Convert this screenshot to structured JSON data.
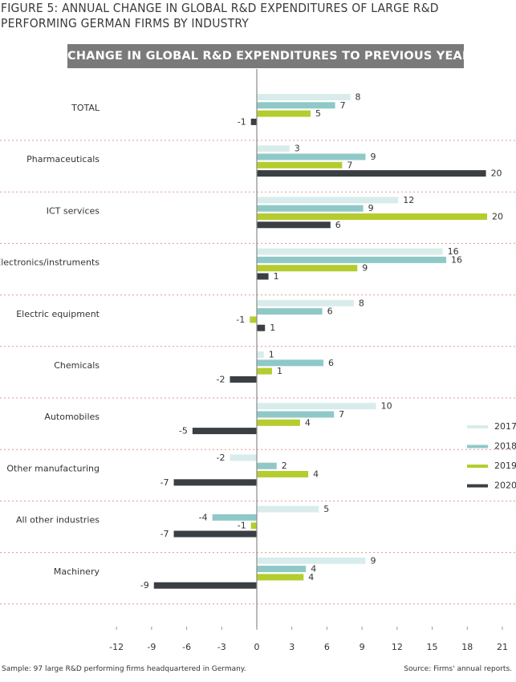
{
  "figure_title_line1": "FIGURE 5: ANNUAL CHANGE IN GLOBAL R&D EXPENDITURES OF LARGE R&D",
  "figure_title_line2": "PERFORMING GERMAN FIRMS BY INDUSTRY",
  "footer": {
    "sample": "Sample: 97 large R&D performing firms headquartered in Germany.",
    "source": "Source: Firms' annual reports."
  },
  "chart_data": {
    "type": "bar",
    "orientation": "horizontal",
    "title": "CHANGE IN GLOBAL R&D EXPENDITURES TO PREVIOUS YEAR (%)",
    "categories": [
      "TOTAL",
      "Pharmaceuticals",
      "ICT services",
      "Electronics/instruments",
      "Electric equipment",
      "Chemicals",
      "Automobiles",
      "Other manufacturing",
      "All other industries",
      "Machinery"
    ],
    "series": [
      {
        "name": "2017",
        "color": "#d9ecec",
        "values": [
          8,
          2.8,
          12.1,
          15.9,
          8.3,
          0.6,
          10.2,
          -2.3,
          5.3,
          9.3
        ],
        "labels": [
          "8",
          "3",
          "12",
          "16",
          "8",
          "1",
          "10",
          "-2",
          "5",
          "9"
        ]
      },
      {
        "name": "2018",
        "color": "#8fc9c7",
        "values": [
          6.7,
          9.3,
          9.1,
          16.2,
          5.6,
          5.7,
          6.6,
          1.7,
          -3.8,
          4.2
        ],
        "labels": [
          "7",
          "9",
          "9",
          "16",
          "6",
          "6",
          "7",
          "2",
          "-4",
          "4"
        ]
      },
      {
        "name": "2019",
        "color": "#b5cc2e",
        "values": [
          4.6,
          7.3,
          19.7,
          8.6,
          -0.6,
          1.3,
          3.7,
          4.4,
          -0.5,
          4
        ],
        "labels": [
          "5",
          "7",
          "20",
          "9",
          "-1",
          "1",
          "4",
          "4",
          "-1",
          "4"
        ]
      },
      {
        "name": "2020",
        "color": "#3a3f44",
        "values": [
          -0.5,
          19.6,
          6.3,
          1,
          0.7,
          -2.3,
          -5.5,
          -7.1,
          -7.1,
          -8.8
        ],
        "labels": [
          "-1",
          "20",
          "6",
          "1",
          "1",
          "-2",
          "-5",
          "-7",
          "-7",
          "-9"
        ]
      }
    ],
    "xlim": [
      -12,
      21
    ],
    "xticks": [
      "-12",
      "-9",
      "-6",
      "-3",
      "0",
      "3",
      "6",
      "9",
      "12",
      "15",
      "18",
      "21"
    ],
    "legend_position": "right",
    "separator_style": "dotted red"
  }
}
